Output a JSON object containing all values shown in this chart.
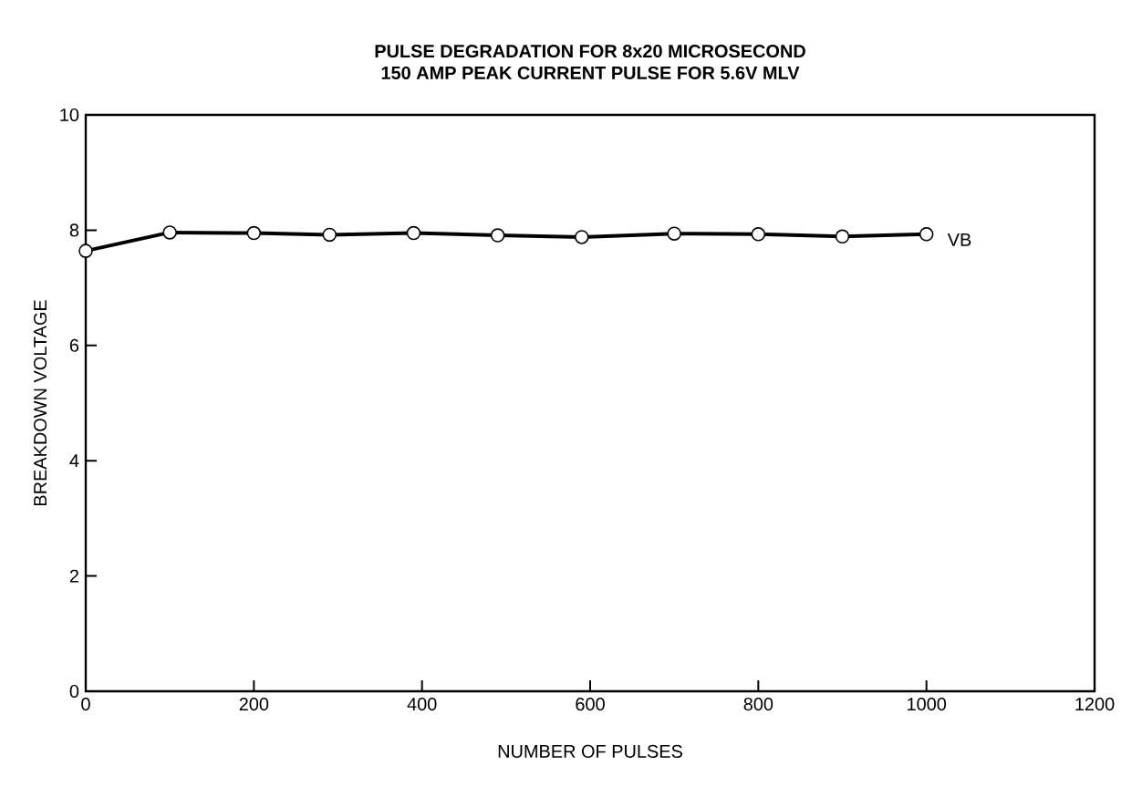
{
  "chart_data": {
    "type": "line",
    "title": "PULSE DEGRADATION FOR 8x20 MICROSECOND\n150 AMP PEAK CURRENT PULSE FOR 5.6V MLV",
    "xlabel": "NUMBER OF PULSES",
    "ylabel": "BREAKDOWN VOLTAGE",
    "x": [
      0,
      100,
      200,
      290,
      390,
      490,
      590,
      700,
      800,
      900,
      1000
    ],
    "series": [
      {
        "name": "VB",
        "color": "#000000",
        "values": [
          7.64,
          7.96,
          7.95,
          7.92,
          7.95,
          7.91,
          7.88,
          7.94,
          7.93,
          7.89,
          7.93
        ]
      }
    ],
    "xlim": [
      0,
      1200
    ],
    "ylim": [
      0,
      10
    ],
    "xticks": [
      0,
      200,
      400,
      600,
      800,
      1000,
      1200
    ],
    "yticks": [
      0,
      2,
      4,
      6,
      8,
      10
    ],
    "grid": false,
    "legend": false,
    "marker": "circle",
    "line_style": "solid"
  }
}
